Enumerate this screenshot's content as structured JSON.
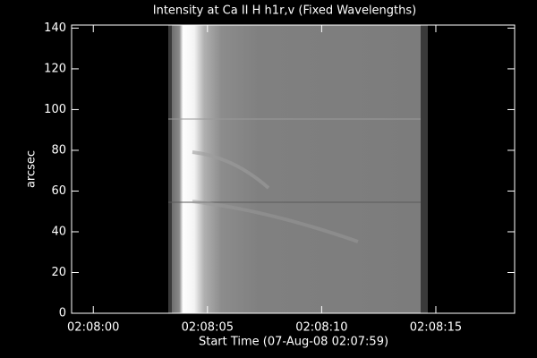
{
  "chart_data": {
    "type": "image",
    "title": "Intensity at Ca II H h1r,v (Fixed Wavelengths)",
    "x_label": "Start Time (07-Aug-08 02:07:59)",
    "y_label": "arcsec",
    "xlim": [
      -0.95,
      18.45
    ],
    "xticks": [
      {
        "value": 0,
        "label": "02:08:00"
      },
      {
        "value": 5,
        "label": "02:08:05"
      },
      {
        "value": 10,
        "label": "02:08:10"
      },
      {
        "value": 15,
        "label": "02:08:15"
      }
    ],
    "ylim": [
      0,
      141.5
    ],
    "yticks": [
      0,
      20,
      40,
      60,
      80,
      100,
      120,
      140
    ]
  }
}
